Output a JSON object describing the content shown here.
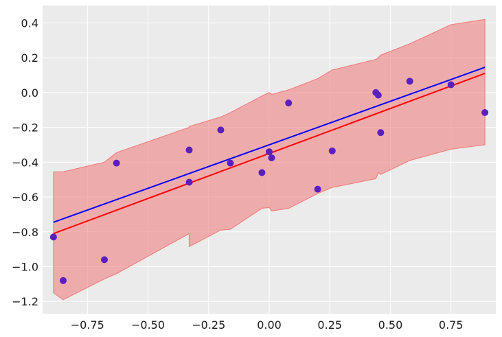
{
  "chart_data": {
    "type": "scatter",
    "title": "",
    "xlabel": "",
    "ylabel": "",
    "xlim": [
      -0.935,
      0.935
    ],
    "ylim": [
      -1.27,
      0.5
    ],
    "grid": true,
    "background": "#ebebeb",
    "xticks": [
      -0.75,
      -0.5,
      -0.25,
      0.0,
      0.25,
      0.5,
      0.75
    ],
    "xtick_labels": [
      "−0.75",
      "−0.50",
      "−0.25",
      "0.00",
      "0.25",
      "0.50",
      "0.75"
    ],
    "yticks": [
      0.4,
      0.2,
      0.0,
      -0.2,
      -0.4,
      -0.6,
      -0.8,
      -1.0,
      -1.2
    ],
    "ytick_labels": [
      "0.4",
      "0.2",
      "0.0",
      "−0.2",
      "−0.4",
      "−0.6",
      "−0.8",
      "−1.0",
      "−1.2"
    ],
    "points": {
      "color": "#5a1fbf",
      "x": [
        -0.89,
        -0.85,
        -0.68,
        -0.63,
        -0.33,
        -0.33,
        -0.2,
        -0.16,
        -0.03,
        0.0,
        0.01,
        0.08,
        0.2,
        0.26,
        0.44,
        0.45,
        0.46,
        0.58,
        0.75,
        0.89
      ],
      "y": [
        -0.83,
        -1.08,
        -0.96,
        -0.405,
        -0.33,
        -0.515,
        -0.215,
        -0.405,
        -0.46,
        -0.34,
        -0.375,
        -0.06,
        -0.555,
        -0.335,
        0.0,
        -0.015,
        -0.23,
        0.065,
        0.045,
        -0.115
      ]
    },
    "lines": [
      {
        "color": "#0000ff",
        "x": [
          -0.89,
          0.89
        ],
        "y": [
          -0.745,
          0.145
        ]
      },
      {
        "color": "#ff0000",
        "x": [
          -0.89,
          0.89
        ],
        "y": [
          -0.81,
          0.11
        ]
      }
    ],
    "band": {
      "color": "#f08080",
      "opacity": 0.6,
      "x": [
        -0.89,
        -0.85,
        -0.68,
        -0.63,
        -0.33,
        -0.33,
        -0.2,
        -0.16,
        -0.03,
        0.0,
        0.01,
        0.08,
        0.2,
        0.26,
        0.44,
        0.45,
        0.46,
        0.58,
        0.75,
        0.89
      ],
      "upper": [
        -0.455,
        -0.455,
        -0.4,
        -0.345,
        -0.2,
        -0.195,
        -0.14,
        -0.115,
        -0.02,
        -0.0,
        -0.01,
        0.015,
        0.08,
        0.13,
        0.19,
        0.2,
        0.215,
        0.28,
        0.39,
        0.42
      ],
      "lower": [
        -1.15,
        -1.19,
        -1.07,
        -1.04,
        -0.81,
        -0.885,
        -0.79,
        -0.785,
        -0.665,
        -0.66,
        -0.68,
        -0.665,
        -0.58,
        -0.545,
        -0.495,
        -0.46,
        -0.47,
        -0.39,
        -0.325,
        -0.3
      ]
    }
  }
}
